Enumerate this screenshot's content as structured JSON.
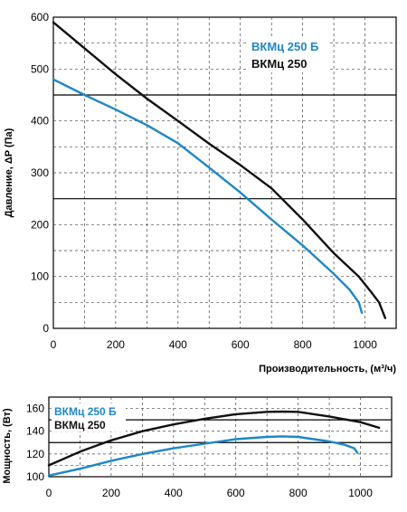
{
  "colors": {
    "blue": "#1d87c6",
    "black": "#111111",
    "grid_minor": "#555555",
    "grid_major": "#000000"
  },
  "chart_data": [
    {
      "type": "line",
      "xlabel": "Производительность, (м³/ч)",
      "ylabel": "Давление, ΔP (Па)",
      "xlim": [
        0,
        1100
      ],
      "ylim": [
        0,
        600
      ],
      "x_ticks": [
        "0",
        "200",
        "400",
        "600",
        "800",
        "1000"
      ],
      "y_ticks": [
        "0",
        "100",
        "200",
        "300",
        "400",
        "500",
        "600"
      ],
      "grid": true,
      "legend_position": "top-right",
      "series": [
        {
          "name": "ВКМц 250 Б",
          "color": "#1d87c6",
          "x": [
            0,
            100,
            200,
            300,
            400,
            500,
            600,
            700,
            800,
            900,
            950,
            980,
            990
          ],
          "y": [
            480,
            450,
            422,
            392,
            357,
            310,
            262,
            210,
            160,
            105,
            75,
            50,
            30
          ]
        },
        {
          "name": "ВКМц 250",
          "color": "#111111",
          "x": [
            0,
            100,
            200,
            300,
            400,
            500,
            600,
            700,
            800,
            900,
            980,
            1020,
            1045,
            1065
          ],
          "y": [
            590,
            540,
            490,
            443,
            400,
            356,
            315,
            270,
            210,
            145,
            100,
            70,
            50,
            20
          ]
        }
      ]
    },
    {
      "type": "line",
      "xlabel": "",
      "ylabel": "Мощность, (Вт)",
      "xlim": [
        0,
        1100
      ],
      "ylim": [
        100,
        170
      ],
      "x_ticks": [
        "0",
        "200",
        "400",
        "600",
        "800",
        "1000"
      ],
      "y_ticks": [
        "100",
        "120",
        "140",
        "160"
      ],
      "grid": true,
      "legend_position": "top-left",
      "series": [
        {
          "name": "ВКМц 250 Б",
          "color": "#1d87c6",
          "x": [
            0,
            100,
            200,
            300,
            400,
            500,
            600,
            700,
            750,
            800,
            900,
            950,
            980,
            990
          ],
          "y": [
            101,
            107,
            114,
            120,
            125,
            129,
            133,
            135,
            135.5,
            135,
            131,
            128,
            125,
            121
          ]
        },
        {
          "name": "ВКМц 250",
          "color": "#111111",
          "x": [
            0,
            100,
            200,
            300,
            400,
            500,
            600,
            700,
            750,
            800,
            900,
            1000,
            1060
          ],
          "y": [
            110,
            122,
            132,
            140,
            146,
            151,
            155,
            157,
            157.3,
            157,
            153,
            148,
            143
          ]
        }
      ]
    }
  ]
}
